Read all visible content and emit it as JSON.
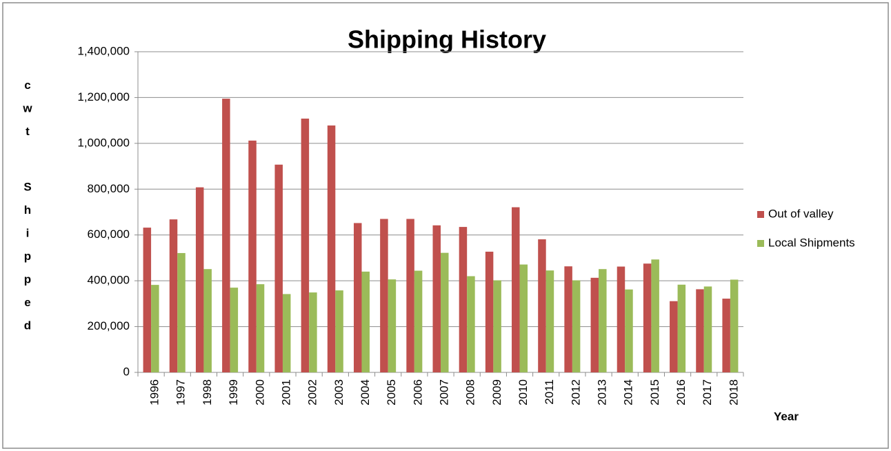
{
  "chart_data": {
    "type": "bar",
    "title": "Shipping History",
    "y_label": "cwt Shipped",
    "x_label": "Year",
    "categories": [
      "1996",
      "1997",
      "1998",
      "1999",
      "2000",
      "2001",
      "2002",
      "2003",
      "2004",
      "2005",
      "2006",
      "2007",
      "2008",
      "2009",
      "2010",
      "2011",
      "2012",
      "2013",
      "2014",
      "2015",
      "2016",
      "2017",
      "2018"
    ],
    "series": [
      {
        "name": "Out of valley",
        "color": "#c0504d",
        "values": [
          632000,
          668000,
          808000,
          1195000,
          1012000,
          907000,
          1108000,
          1078000,
          652000,
          670000,
          670000,
          642000,
          635000,
          527000,
          721000,
          581000,
          463000,
          413000,
          462000,
          475000,
          311000,
          363000,
          322000
        ]
      },
      {
        "name": "Local Shipments",
        "color": "#9bbb59",
        "values": [
          382000,
          521000,
          451000,
          370000,
          385000,
          342000,
          349000,
          358000,
          440000,
          406000,
          444000,
          522000,
          420000,
          402000,
          471000,
          445000,
          402000,
          451000,
          362000,
          493000,
          383000,
          375000,
          405000
        ]
      }
    ],
    "ylim": [
      0,
      1400000
    ],
    "yticks": [
      0,
      {
        "value": 200000,
        "label": "200,000"
      },
      {
        "value": 400000,
        "label": "400,000"
      },
      {
        "value": 600000,
        "label": "600,000"
      },
      {
        "value": 800000,
        "label": "800,000"
      },
      {
        "value": 1000000,
        "label": "1,000,000"
      },
      {
        "value": 1200000,
        "label": "1,200,000"
      },
      {
        "value": 1400000,
        "label": "1,400,000"
      }
    ],
    "grid": true,
    "legend": "right"
  }
}
